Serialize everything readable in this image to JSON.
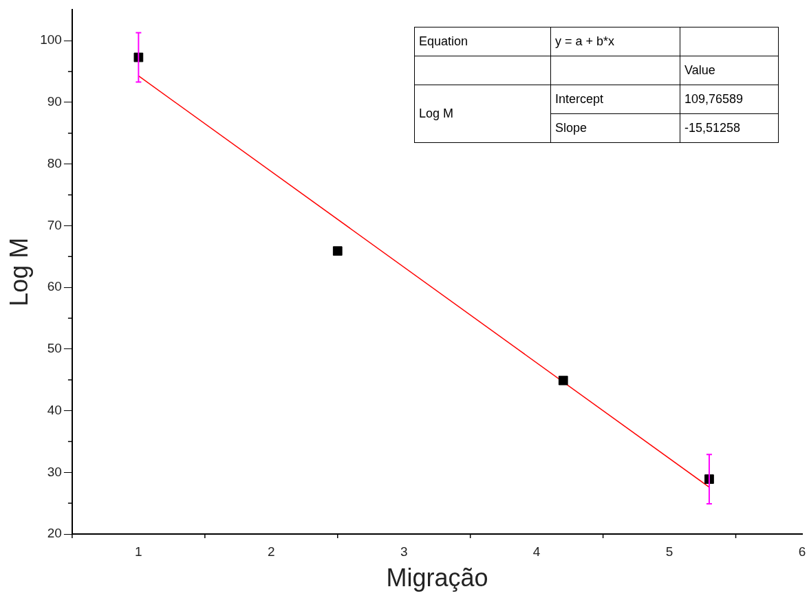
{
  "chart_data": {
    "type": "scatter",
    "xlabel": "Migração",
    "ylabel": "Log M",
    "xlim": [
      0.5,
      6
    ],
    "xticks": [
      1,
      2,
      3,
      4,
      5,
      6
    ],
    "ylim": [
      20,
      105
    ],
    "yticks": [
      20,
      30,
      40,
      50,
      60,
      70,
      80,
      90,
      100
    ],
    "grid": false,
    "legend": false,
    "marker": "square",
    "series": [
      {
        "color": "#000000",
        "x": [
          1,
          2.5,
          4.2,
          5.3
        ],
        "values": [
          97.3,
          65.9,
          44.9,
          28.9
        ],
        "errors": [
          4,
          null,
          null,
          4
        ]
      },
      {
        "type": "line",
        "color": "#ff0000",
        "x": [
          1,
          5.3
        ],
        "values": [
          94.3,
          27.6
        ],
        "marker": "none"
      }
    ],
    "annotations": [
      "Equation",
      "y = a + b*x",
      "Value",
      "Log M",
      "Intercept",
      "109,76589",
      "Slope",
      "-15,51258"
    ]
  }
}
